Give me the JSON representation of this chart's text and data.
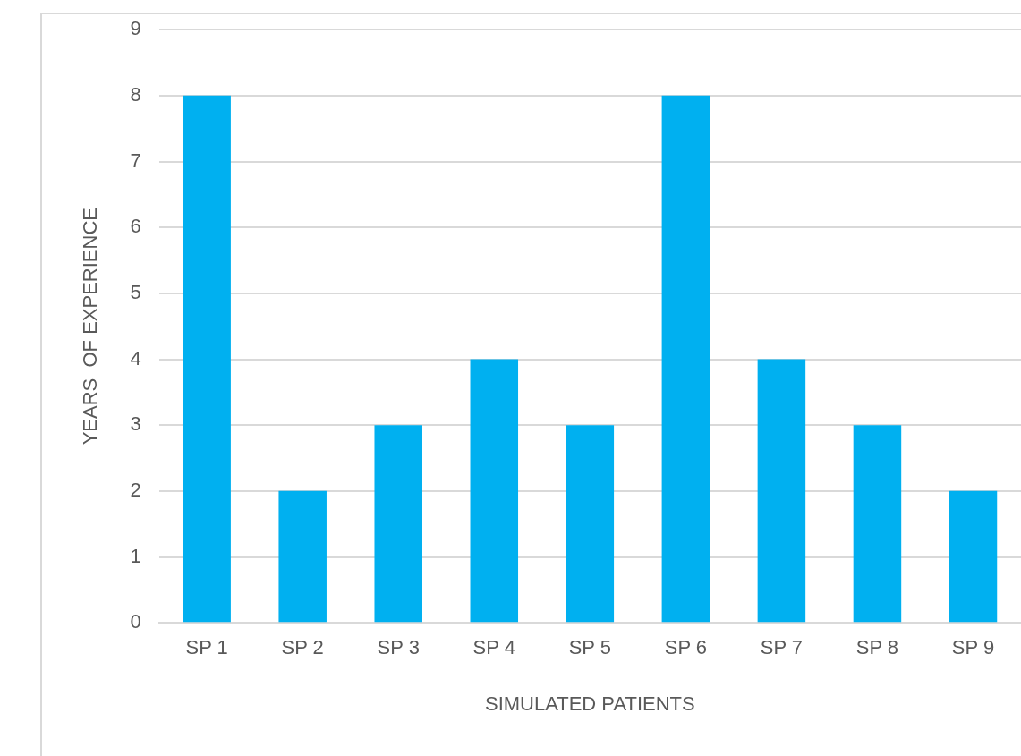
{
  "chart_data": {
    "type": "bar",
    "xlabel": "SIMULATED PATIENTS",
    "ylabel": "YEARS  OF EXPERIENCE",
    "categories": [
      "SP 1",
      "SP 2",
      "SP 3",
      "SP 4",
      "SP 5",
      "SP 6",
      "SP 7",
      "SP 8",
      "SP 9"
    ],
    "values": [
      8,
      2,
      3,
      4,
      3,
      8,
      4,
      3,
      2
    ],
    "color": "#00b0f0",
    "ylim": [
      0,
      9
    ],
    "yticks": [
      0,
      1,
      2,
      3,
      4,
      5,
      6,
      7,
      8,
      9
    ],
    "grid": "y",
    "legend": false
  }
}
